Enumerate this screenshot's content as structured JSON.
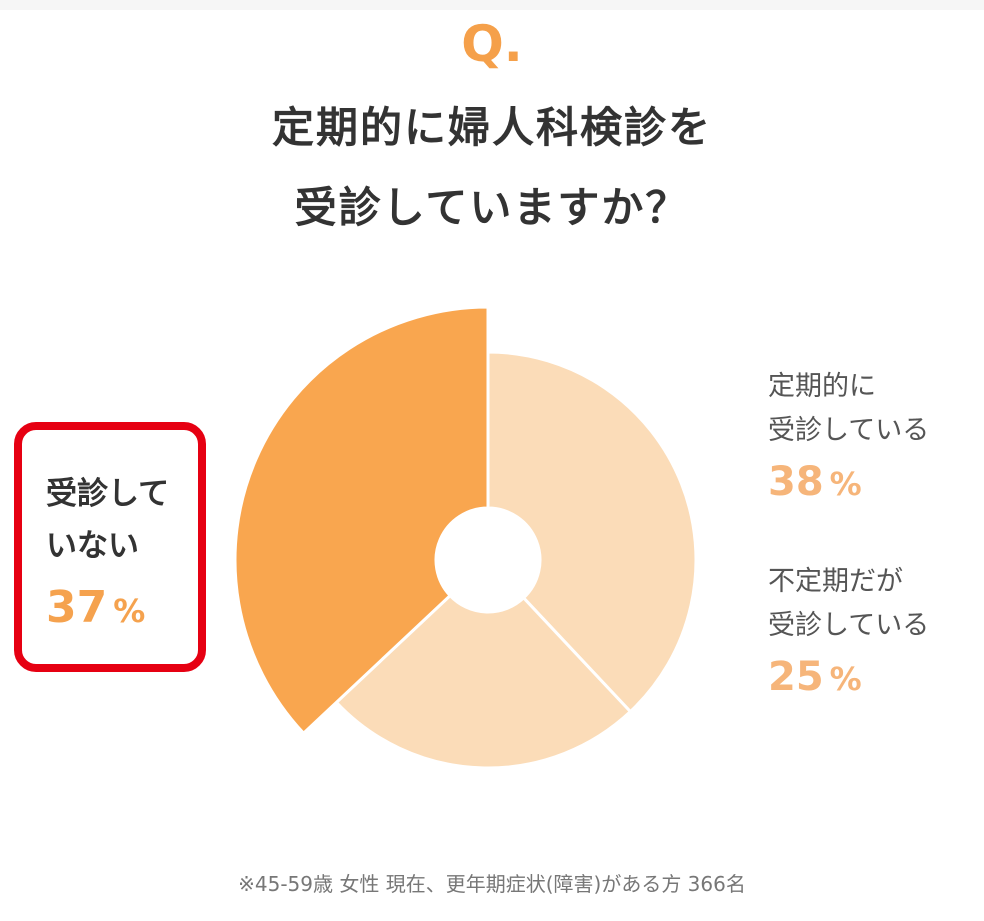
{
  "header": {
    "q_mark": "Q.",
    "question_line1": "定期的に婦人科検診を",
    "question_line2": "受診していますか？"
  },
  "chart_data": {
    "type": "pie",
    "variant": "donut, highlighted slice pulled out / enlarged",
    "unit": "%",
    "slices": [
      {
        "label_line1": "受診して",
        "label_line2": "いない",
        "value": 37,
        "color": "#f9a64f",
        "highlighted": true
      },
      {
        "label_line1": "定期的に",
        "label_line2": "受診している",
        "value": 38,
        "color": "#fbdcb8",
        "highlighted": false
      },
      {
        "label_line1": "不定期だが",
        "label_line2": "受診している",
        "value": 25,
        "color": "#fbdcb8",
        "highlighted": false
      }
    ],
    "highlight_box_color": "#e60012",
    "value_color": "#f6b57a"
  },
  "footnote": "※45-59歳 女性 現在、更年期症状(障害)がある方 366名"
}
